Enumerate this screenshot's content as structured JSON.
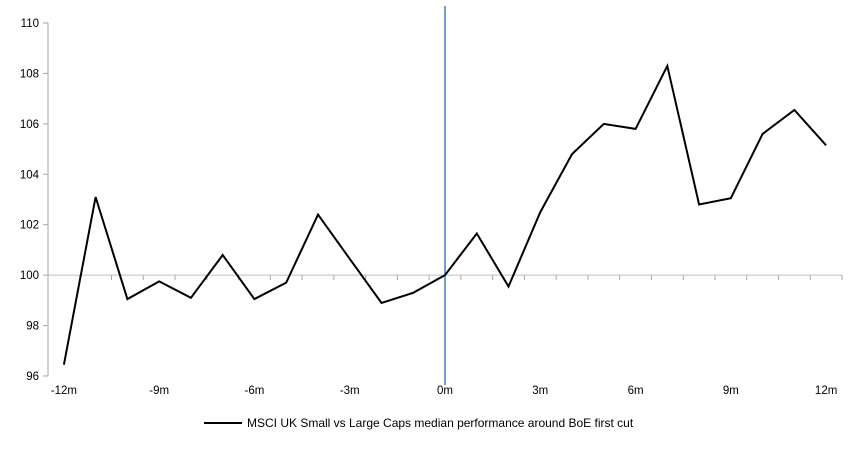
{
  "legend": {
    "label": "MSCI UK Small vs Large Caps median performance around BoE first cut"
  },
  "chart_data": {
    "type": "line",
    "title": "",
    "xlabel": "",
    "ylabel": "",
    "x": [
      -12,
      -11,
      -10,
      -9,
      -8,
      -7,
      -6,
      -5,
      -4,
      -3,
      -2,
      -1,
      0,
      1,
      2,
      3,
      4,
      5,
      6,
      7,
      8,
      9,
      10,
      11,
      12
    ],
    "series": [
      {
        "name": "MSCI UK Small vs Large Caps median performance around BoE first cut",
        "values": [
          96.45,
          103.1,
          99.05,
          99.75,
          99.1,
          100.8,
          99.05,
          99.7,
          102.4,
          100.65,
          98.9,
          99.3,
          100.0,
          101.65,
          99.55,
          102.5,
          104.8,
          106.0,
          105.8,
          108.3,
          102.8,
          103.05,
          105.6,
          106.55,
          105.15
        ]
      }
    ],
    "ylim": [
      96,
      110
    ],
    "yticks": [
      96,
      98,
      100,
      102,
      104,
      106,
      108,
      110
    ],
    "ytick_labels": [
      "96",
      "98",
      "100",
      "102",
      "104",
      "106",
      "108",
      "110"
    ],
    "xticks": [
      -12,
      -9,
      -6,
      -3,
      0,
      3,
      6,
      9,
      12
    ],
    "xtick_labels": [
      "-12m",
      "-9m",
      "-6m",
      "-3m",
      "0m",
      "3m",
      "6m",
      "9m",
      "12m"
    ],
    "minor_xtick_interval_months": 1,
    "baseline_value": 100,
    "event_line_x": 0,
    "grid": false,
    "legend_position": "bottom-center",
    "colors": {
      "series": "#000000",
      "event_line": "#4a86c6",
      "baseline": "#bfbfbf",
      "axis": "#a6a6a6",
      "text": "#000000",
      "background": "#ffffff"
    }
  }
}
